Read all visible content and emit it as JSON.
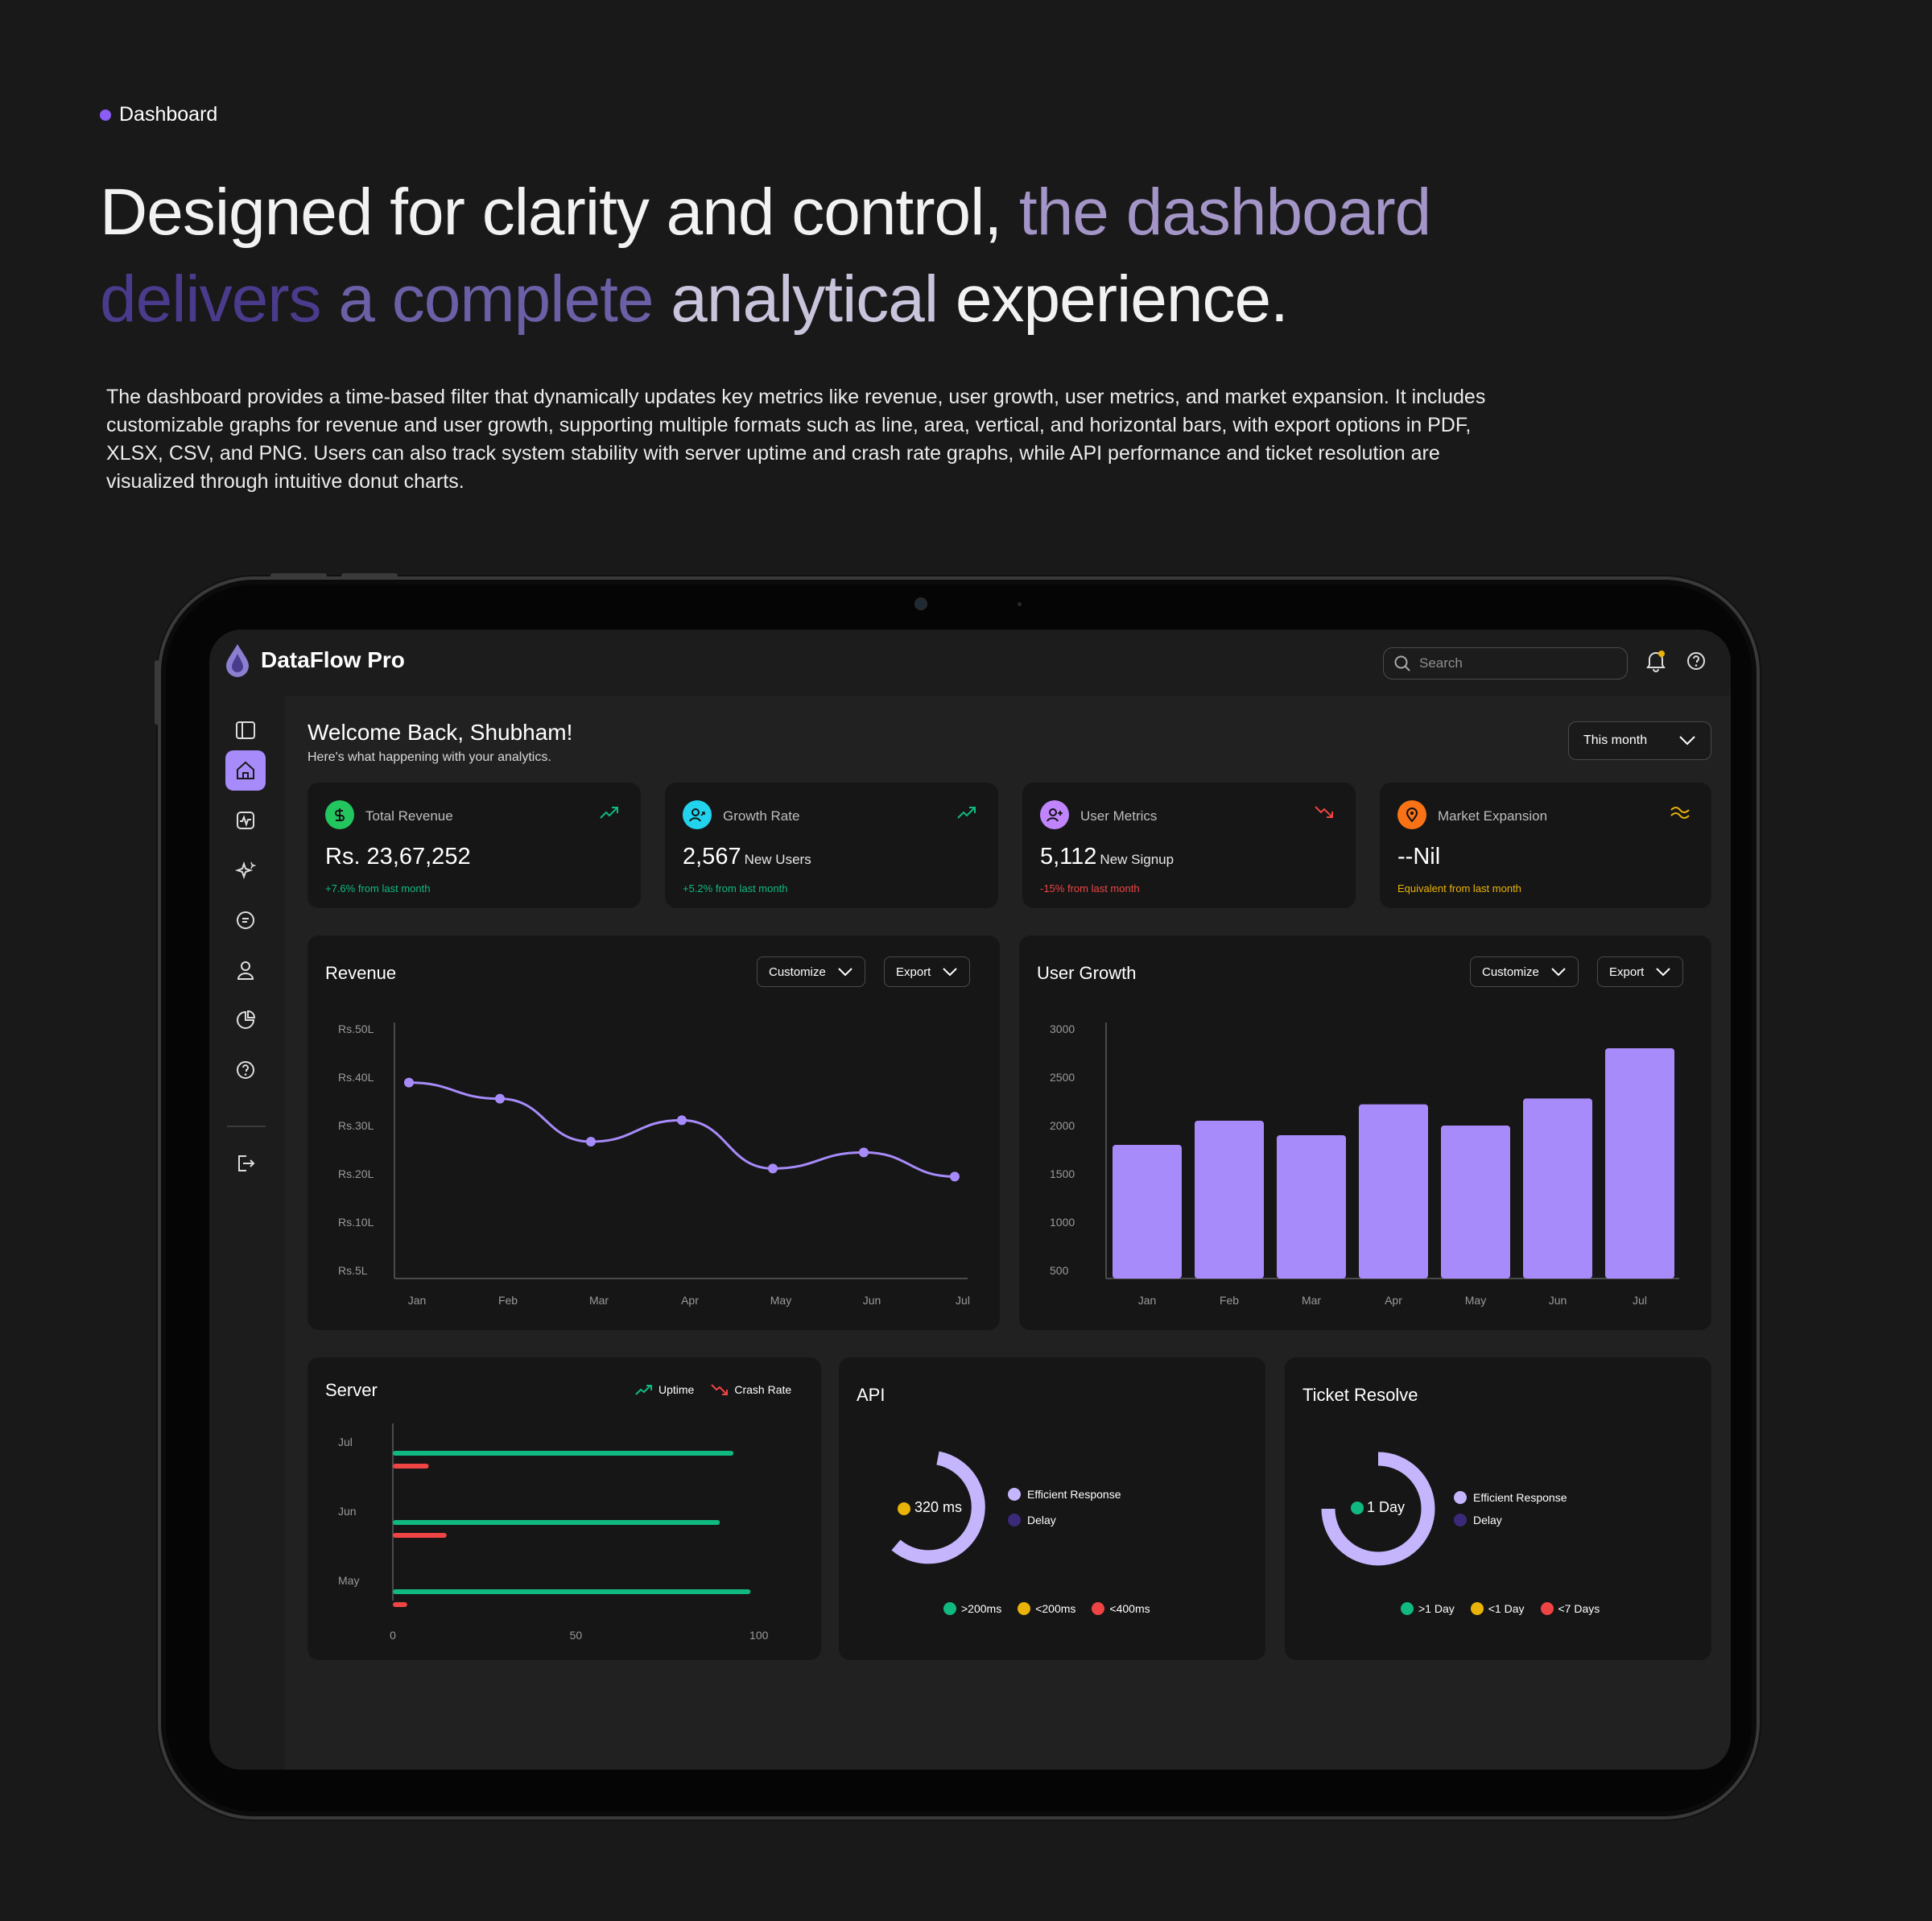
{
  "section_tag": "Dashboard",
  "headline": {
    "part1": "Designed for clarity and control, ",
    "part2": "the dashboard",
    "part3": "delivers ",
    "part4": "a complete ",
    "part5": "analytical ",
    "part6": "experience."
  },
  "description": "The dashboard provides a time-based filter that dynamically updates key metrics like revenue, user growth, user metrics, and market expansion. It includes customizable graphs for revenue and user growth, supporting multiple formats such as line, area, vertical, and horizontal bars, with export options in PDF, XLSX, CSV, and PNG. Users can also track system stability with server uptime and crash rate graphs, while API performance and ticket resolution are visualized through intuitive donut charts.",
  "app": {
    "brand": "DataFlow Pro",
    "search_placeholder": "Search",
    "welcome": "Welcome Back, Shubham!",
    "welcome_sub": "Here's what happening with your analytics.",
    "period": "This month"
  },
  "colors": {
    "accent": "#a78bfa",
    "green": "#10b981",
    "red": "#ef4444",
    "yellow": "#eab308",
    "dark_purple": "#3b2a7a"
  },
  "kpis": [
    {
      "name": "Total Revenue",
      "value": "Rs. 23,67,252",
      "unit": "",
      "note": "+7.6% from last month",
      "icon": "dollar-icon",
      "trend": "up"
    },
    {
      "name": "Growth Rate",
      "value": "2,567",
      "unit": "New Users",
      "note": "+5.2% from last month",
      "icon": "user-growth-icon",
      "trend": "up"
    },
    {
      "name": "User Metrics",
      "value": "5,112",
      "unit": "New Signup",
      "note": "-15% from last month",
      "icon": "user-add-icon",
      "trend": "down"
    },
    {
      "name": "Market Expansion",
      "value": "--Nil",
      "unit": "",
      "note": "Equivalent from last month",
      "icon": "location-icon",
      "trend": "flat"
    }
  ],
  "buttons": {
    "customize": "Customize",
    "export": "Export"
  },
  "chart_data": [
    {
      "type": "line",
      "title": "Revenue",
      "categories": [
        "Jan",
        "Feb",
        "Mar",
        "Apr",
        "May",
        "Jun",
        "Jul"
      ],
      "values": [
        40,
        37,
        29,
        33,
        24,
        27,
        22.5
      ],
      "y_tick_labels": [
        "Rs.50L",
        "Rs.40L",
        "Rs.30L",
        "Rs.20L",
        "Rs.10L",
        "Rs.5L"
      ],
      "ylim": [
        5,
        50
      ]
    },
    {
      "type": "bar",
      "title": "User Growth",
      "categories": [
        "Jan",
        "Feb",
        "Mar",
        "Apr",
        "May",
        "Jun",
        "Jul"
      ],
      "values": [
        1800,
        2050,
        1900,
        2220,
        2000,
        2280,
        2800
      ],
      "y_ticks": [
        3000,
        2500,
        2000,
        1500,
        1000,
        500
      ],
      "ylim": [
        500,
        3000
      ]
    },
    {
      "type": "bar",
      "orientation": "horizontal",
      "title": "Server",
      "categories": [
        "Jul",
        "Jun",
        "May"
      ],
      "series": [
        {
          "name": "Uptime",
          "values": [
            100,
            96,
            105
          ]
        },
        {
          "name": "Crash Rate",
          "values": [
            10,
            15,
            4
          ]
        }
      ],
      "x_ticks": [
        0,
        50,
        100
      ]
    }
  ],
  "api": {
    "title": "API",
    "center": "320 ms",
    "legend": [
      "Efficient Response",
      "Delay"
    ],
    "bottom": [
      ">200ms",
      "<200ms",
      "<400ms"
    ]
  },
  "ticket": {
    "title": "Ticket Resolve",
    "center": "1 Day",
    "legend": [
      "Efficient Response",
      "Delay"
    ],
    "bottom": [
      ">1 Day",
      "<1 Day",
      "<7 Days"
    ]
  }
}
